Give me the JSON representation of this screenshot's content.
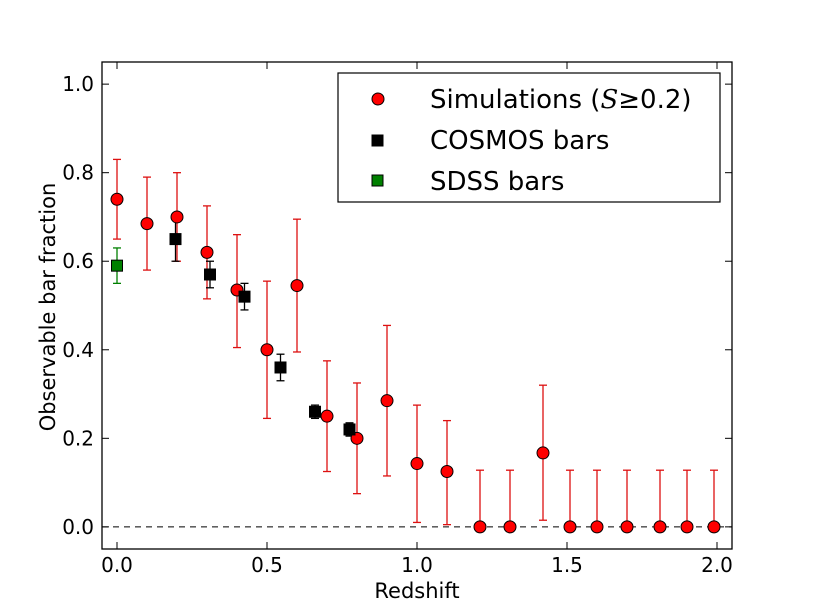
{
  "chart_data": {
    "type": "scatter",
    "xlabel": "Redshift",
    "ylabel": "Observable bar fraction",
    "xlim": [
      -0.05,
      2.05
    ],
    "ylim": [
      -0.05,
      1.05
    ],
    "x_ticks": [
      "0.0",
      "0.5",
      "1.0",
      "1.5",
      "2.0"
    ],
    "y_ticks": [
      "0.0",
      "0.2",
      "0.4",
      "0.6",
      "0.8",
      "1.0"
    ],
    "x_tick_values": [
      0.0,
      0.5,
      1.0,
      1.5,
      2.0
    ],
    "y_tick_values": [
      0.0,
      0.2,
      0.4,
      0.6,
      0.8,
      1.0
    ],
    "reference_line": {
      "y": 0.0,
      "style": "dashed"
    },
    "legend_position": "top-right",
    "series": [
      {
        "name": "Simulations",
        "legend_label": "Simulations (",
        "legend_math": "S",
        "legend_math_rest": "≥0.2",
        "legend_close": ")",
        "marker": "circle",
        "color": "#ff0000",
        "errorbar_color": "#dd1111",
        "points": [
          {
            "x": 0.0,
            "y": 0.74,
            "lo": 0.65,
            "hi": 0.83
          },
          {
            "x": 0.1,
            "y": 0.685,
            "lo": 0.58,
            "hi": 0.79
          },
          {
            "x": 0.2,
            "y": 0.7,
            "lo": 0.6,
            "hi": 0.8
          },
          {
            "x": 0.3,
            "y": 0.62,
            "lo": 0.515,
            "hi": 0.725
          },
          {
            "x": 0.4,
            "y": 0.535,
            "lo": 0.405,
            "hi": 0.66
          },
          {
            "x": 0.5,
            "y": 0.4,
            "lo": 0.245,
            "hi": 0.555
          },
          {
            "x": 0.6,
            "y": 0.545,
            "lo": 0.395,
            "hi": 0.695
          },
          {
            "x": 0.7,
            "y": 0.25,
            "lo": 0.125,
            "hi": 0.375
          },
          {
            "x": 0.8,
            "y": 0.2,
            "lo": 0.075,
            "hi": 0.325
          },
          {
            "x": 0.9,
            "y": 0.285,
            "lo": 0.115,
            "hi": 0.455
          },
          {
            "x": 1.0,
            "y": 0.143,
            "lo": 0.01,
            "hi": 0.275
          },
          {
            "x": 1.1,
            "y": 0.125,
            "lo": 0.005,
            "hi": 0.24
          },
          {
            "x": 1.21,
            "y": 0.0,
            "lo": 0.0,
            "hi": 0.128
          },
          {
            "x": 1.31,
            "y": 0.0,
            "lo": 0.0,
            "hi": 0.128
          },
          {
            "x": 1.42,
            "y": 0.167,
            "lo": 0.015,
            "hi": 0.32
          },
          {
            "x": 1.51,
            "y": 0.0,
            "lo": 0.0,
            "hi": 0.128
          },
          {
            "x": 1.6,
            "y": 0.0,
            "lo": 0.0,
            "hi": 0.128
          },
          {
            "x": 1.7,
            "y": 0.0,
            "lo": 0.0,
            "hi": 0.128
          },
          {
            "x": 1.81,
            "y": 0.0,
            "lo": 0.0,
            "hi": 0.128
          },
          {
            "x": 1.9,
            "y": 0.0,
            "lo": 0.0,
            "hi": 0.128
          },
          {
            "x": 1.99,
            "y": 0.0,
            "lo": 0.0,
            "hi": 0.128
          }
        ]
      },
      {
        "name": "COSMOS bars",
        "legend_label": "COSMOS bars",
        "marker": "square",
        "color": "#000000",
        "errorbar_color": "#000000",
        "points": [
          {
            "x": 0.195,
            "y": 0.65,
            "lo": 0.6,
            "hi": 0.7
          },
          {
            "x": 0.31,
            "y": 0.57,
            "lo": 0.54,
            "hi": 0.6
          },
          {
            "x": 0.425,
            "y": 0.52,
            "lo": 0.49,
            "hi": 0.55
          },
          {
            "x": 0.545,
            "y": 0.36,
            "lo": 0.33,
            "hi": 0.39
          },
          {
            "x": 0.66,
            "y": 0.26,
            "lo": 0.245,
            "hi": 0.275
          },
          {
            "x": 0.775,
            "y": 0.22,
            "lo": 0.205,
            "hi": 0.235
          }
        ]
      },
      {
        "name": "SDSS bars",
        "legend_label": "SDSS bars",
        "marker": "square",
        "color": "#008000",
        "errorbar_color": "#008000",
        "points": [
          {
            "x": 0.0,
            "y": 0.59,
            "lo": 0.55,
            "hi": 0.63
          }
        ]
      }
    ]
  }
}
